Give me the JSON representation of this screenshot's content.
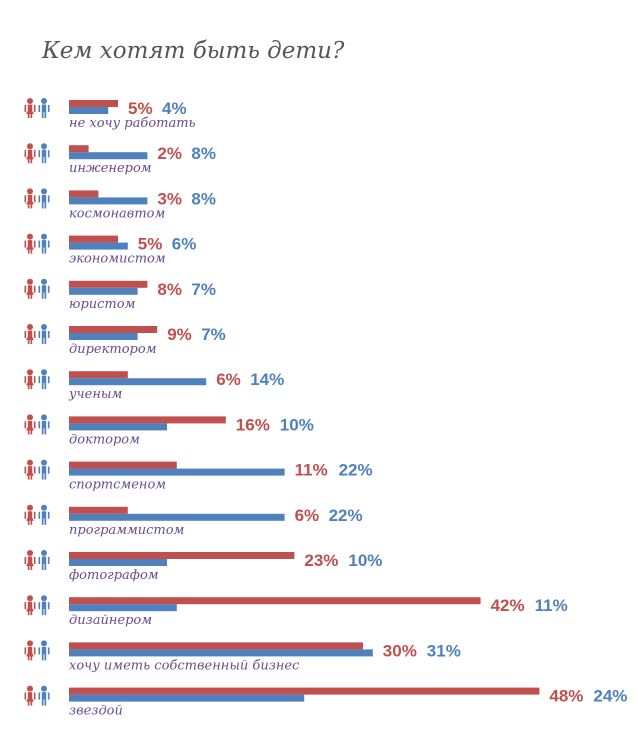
{
  "colors": {
    "girls": "#c0504d",
    "boys": "#4f81bd",
    "label": "#6a4c8c",
    "title": "#555555"
  },
  "icons": {
    "girl": "girl-icon",
    "boy": "boy-icon"
  },
  "chart_data": {
    "type": "bar",
    "orientation": "horizontal",
    "title": "Кем хотят быть дети?",
    "categories": [
      "не хочу работать",
      "инженером",
      "космонавтом",
      "экономистом",
      "юристом",
      "директором",
      "ученым",
      "доктором",
      "спортсменом",
      "программистом",
      "фотографом",
      "дизайнером",
      "хочу иметь собственный бизнес",
      "звездой"
    ],
    "series": [
      {
        "key": "girls",
        "values": [
          5,
          2,
          3,
          5,
          8,
          9,
          6,
          16,
          11,
          6,
          23,
          42,
          30,
          48
        ]
      },
      {
        "key": "boys",
        "values": [
          4,
          8,
          8,
          6,
          7,
          7,
          14,
          10,
          22,
          22,
          10,
          11,
          31,
          24
        ]
      }
    ],
    "value_suffix": "%",
    "xlim": [
      0,
      48
    ],
    "grid": false,
    "legend": "icons-left"
  }
}
